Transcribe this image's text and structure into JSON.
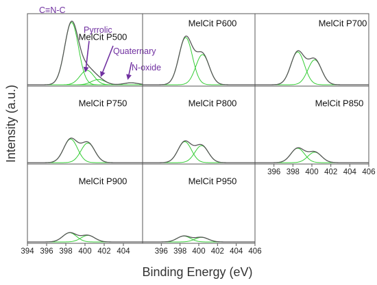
{
  "figure": {
    "ylabel": "Intensity (a.u.)",
    "xlabel": "Binding Energy (eV)",
    "fit_color": "#33cc33",
    "envelope_color": "#555555",
    "annotation_color": "#7030a0",
    "frame_color": "#555555"
  },
  "chart_data": [
    {
      "type": "line",
      "title": "MelCit P500",
      "xlim": [
        394,
        406
      ],
      "peaks": [
        {
          "center": 398.6,
          "height": 0.95
        },
        {
          "center": 400.2,
          "height": 0.22
        },
        {
          "center": 401.4,
          "height": 0.08
        },
        {
          "center": 404.8,
          "height": 0.03
        }
      ],
      "annotations": [
        {
          "label": "C≡N-C",
          "target_x": 398.6
        },
        {
          "label": "Pyrrolic",
          "target_x": 400.2
        },
        {
          "label": "Quaternary",
          "target_x": 401.4
        },
        {
          "label": "N-oxide",
          "target_x": 404.8
        }
      ]
    },
    {
      "type": "line",
      "title": "MelCit P600",
      "xlim": [
        394,
        406
      ],
      "peaks": [
        {
          "center": 398.6,
          "height": 0.72
        },
        {
          "center": 400.4,
          "height": 0.46
        }
      ]
    },
    {
      "type": "line",
      "title": "MelCit P700",
      "xlim": [
        394,
        406
      ],
      "peaks": [
        {
          "center": 398.5,
          "height": 0.5
        },
        {
          "center": 400.3,
          "height": 0.38
        }
      ]
    },
    {
      "type": "line",
      "title": "MelCit P750",
      "xlim": [
        394,
        406
      ],
      "peaks": [
        {
          "center": 398.5,
          "height": 0.36
        },
        {
          "center": 400.3,
          "height": 0.3
        }
      ]
    },
    {
      "type": "line",
      "title": "MelCit P800",
      "xlim": [
        394,
        406
      ],
      "peaks": [
        {
          "center": 398.5,
          "height": 0.32
        },
        {
          "center": 400.3,
          "height": 0.26
        }
      ]
    },
    {
      "type": "line",
      "title": "MelCit P850",
      "xlim": [
        394,
        406
      ],
      "x_ticks": [
        396,
        398,
        400,
        402,
        404,
        406
      ],
      "peaks": [
        {
          "center": 398.5,
          "height": 0.22
        },
        {
          "center": 400.3,
          "height": 0.16
        }
      ]
    },
    {
      "type": "line",
      "title": "MelCit P900",
      "xlim": [
        394,
        406
      ],
      "x_ticks": [
        394,
        396,
        398,
        400,
        402,
        404
      ],
      "peaks": [
        {
          "center": 398.4,
          "height": 0.14
        },
        {
          "center": 400.3,
          "height": 0.1
        }
      ]
    },
    {
      "type": "line",
      "title": "MelCit P950",
      "xlim": [
        394,
        406
      ],
      "x_ticks": [
        396,
        398,
        400,
        402,
        404,
        406
      ],
      "peaks": [
        {
          "center": 398.4,
          "height": 0.09
        },
        {
          "center": 400.3,
          "height": 0.07
        }
      ]
    }
  ]
}
